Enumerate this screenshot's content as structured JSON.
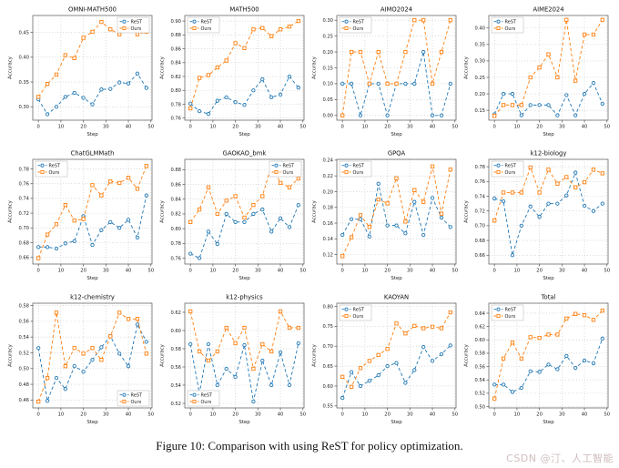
{
  "figure": {
    "caption": "Figure 10: Comparison with using ReST for policy optimization.",
    "watermark": "CSDN @汀、人工智能"
  },
  "colors": {
    "rest": "#1f77b4",
    "ours": "#ff7f0e",
    "grid": "#c9c9c9",
    "spine": "#555555",
    "tick_text": "#222222"
  },
  "axis_common": {
    "xlabel": "Step",
    "ylabel": "Accuracy",
    "xticks": [
      0,
      10,
      20,
      30,
      40,
      50
    ],
    "xlim": [
      -2.5,
      50.5
    ],
    "grid": "dotted",
    "x": [
      0,
      4,
      8,
      12,
      16,
      20,
      24,
      28,
      32,
      36,
      40,
      44,
      48
    ]
  },
  "chart_data": [
    {
      "type": "line",
      "title": "OMNI-MATH500",
      "legend_pos": "top-right",
      "ylim": [
        0.273,
        0.484
      ],
      "yticks": [
        0.3,
        0.35,
        0.4,
        0.45
      ],
      "series": [
        {
          "name": "ReST",
          "values": [
            0.315,
            0.285,
            0.3,
            0.32,
            0.328,
            0.318,
            0.305,
            0.335,
            0.336,
            0.349,
            0.347,
            0.367,
            0.338
          ]
        },
        {
          "name": "Ours",
          "values": [
            0.32,
            0.346,
            0.365,
            0.404,
            0.398,
            0.439,
            0.451,
            0.471,
            0.456,
            0.446,
            0.458,
            0.446,
            0.451
          ]
        }
      ]
    },
    {
      "type": "line",
      "title": "MATH500",
      "legend_pos": "top-left",
      "ylim": [
        0.757,
        0.908
      ],
      "yticks": [
        0.76,
        0.78,
        0.8,
        0.82,
        0.84,
        0.86,
        0.88,
        0.9
      ],
      "series": [
        {
          "name": "ReST",
          "values": [
            0.781,
            0.77,
            0.766,
            0.785,
            0.79,
            0.783,
            0.779,
            0.8,
            0.816,
            0.79,
            0.794,
            0.82,
            0.804
          ]
        },
        {
          "name": "Ours",
          "values": [
            0.774,
            0.818,
            0.822,
            0.833,
            0.843,
            0.868,
            0.861,
            0.888,
            0.89,
            0.878,
            0.888,
            0.892,
            0.9
          ]
        }
      ]
    },
    {
      "type": "line",
      "title": "AIMO2024",
      "legend_pos": "top-left",
      "ylim": [
        -0.015,
        0.315
      ],
      "yticks": [
        0.0,
        0.05,
        0.1,
        0.15,
        0.2,
        0.25,
        0.3
      ],
      "series": [
        {
          "name": "ReST",
          "values": [
            0.1,
            0.1,
            0.0,
            0.1,
            0.1,
            0.0,
            0.1,
            0.1,
            0.1,
            0.2,
            0.0,
            0.0,
            0.1
          ]
        },
        {
          "name": "Ours",
          "values": [
            0.0,
            0.2,
            0.2,
            0.1,
            0.2,
            0.1,
            0.1,
            0.2,
            0.3,
            0.3,
            0.1,
            0.2,
            0.3
          ]
        }
      ]
    },
    {
      "type": "line",
      "title": "AIME2024",
      "legend_pos": "top-left",
      "ylim": [
        0.12,
        0.438
      ],
      "yticks": [
        0.15,
        0.2,
        0.25,
        0.3,
        0.35,
        0.4
      ],
      "series": [
        {
          "name": "ReST",
          "values": [
            0.138,
            0.2,
            0.2,
            0.135,
            0.166,
            0.166,
            0.166,
            0.135,
            0.196,
            0.135,
            0.2,
            0.233,
            0.17
          ]
        },
        {
          "name": "Ours",
          "values": [
            0.133,
            0.166,
            0.166,
            0.166,
            0.25,
            0.28,
            0.32,
            0.25,
            0.425,
            0.24,
            0.38,
            0.38,
            0.425
          ]
        }
      ]
    },
    {
      "type": "line",
      "title": "ChatGLMMath",
      "legend_pos": "top-left",
      "ylim": [
        0.651,
        0.793
      ],
      "yticks": [
        0.66,
        0.68,
        0.7,
        0.72,
        0.74,
        0.76,
        0.78
      ],
      "series": [
        {
          "name": "ReST",
          "values": [
            0.674,
            0.674,
            0.672,
            0.679,
            0.682,
            0.716,
            0.677,
            0.697,
            0.708,
            0.7,
            0.711,
            0.687,
            0.744
          ]
        },
        {
          "name": "Ours",
          "values": [
            0.659,
            0.691,
            0.705,
            0.731,
            0.71,
            0.712,
            0.758,
            0.744,
            0.763,
            0.761,
            0.768,
            0.753,
            0.784
          ]
        }
      ]
    },
    {
      "type": "line",
      "title": "GAOKAO_bmk",
      "legend_pos": "top-right",
      "ylim": [
        0.752,
        0.894
      ],
      "yticks": [
        0.76,
        0.78,
        0.8,
        0.82,
        0.84,
        0.86,
        0.88
      ],
      "series": [
        {
          "name": "ReST",
          "values": [
            0.766,
            0.76,
            0.796,
            0.779,
            0.82,
            0.809,
            0.809,
            0.82,
            0.826,
            0.796,
            0.814,
            0.802,
            0.832
          ]
        },
        {
          "name": "Ours",
          "values": [
            0.809,
            0.826,
            0.856,
            0.82,
            0.838,
            0.844,
            0.815,
            0.832,
            0.844,
            0.886,
            0.862,
            0.856,
            0.868
          ]
        }
      ]
    },
    {
      "type": "line",
      "title": "GPQA",
      "legend_pos": "top-left",
      "ylim": [
        0.108,
        0.241
      ],
      "yticks": [
        0.12,
        0.14,
        0.16,
        0.18,
        0.2,
        0.22,
        0.24
      ],
      "series": [
        {
          "name": "ReST",
          "values": [
            0.145,
            0.165,
            0.165,
            0.143,
            0.21,
            0.157,
            0.157,
            0.147,
            0.187,
            0.145,
            0.192,
            0.167,
            0.155
          ]
        },
        {
          "name": "Ours",
          "values": [
            0.118,
            0.142,
            0.17,
            0.155,
            0.19,
            0.185,
            0.217,
            0.162,
            0.202,
            0.187,
            0.232,
            0.172,
            0.228
          ]
        }
      ]
    },
    {
      "type": "line",
      "title": "k12-biology",
      "legend_pos": "top-left",
      "ylim": [
        0.648,
        0.79
      ],
      "yticks": [
        0.66,
        0.68,
        0.7,
        0.72,
        0.74,
        0.76,
        0.78
      ],
      "series": [
        {
          "name": "ReST",
          "values": [
            0.737,
            0.733,
            0.66,
            0.7,
            0.726,
            0.712,
            0.73,
            0.73,
            0.741,
            0.772,
            0.727,
            0.72,
            0.73
          ]
        },
        {
          "name": "Ours",
          "values": [
            0.707,
            0.745,
            0.745,
            0.745,
            0.779,
            0.745,
            0.776,
            0.757,
            0.766,
            0.752,
            0.759,
            0.776,
            0.771
          ]
        }
      ]
    },
    {
      "type": "line",
      "title": "k12-chemistry",
      "legend_pos": "bottom-right",
      "ylim": [
        0.45,
        0.583
      ],
      "yticks": [
        0.46,
        0.48,
        0.5,
        0.52,
        0.54,
        0.56,
        0.58
      ],
      "series": [
        {
          "name": "ReST",
          "values": [
            0.526,
            0.459,
            0.488,
            0.474,
            0.503,
            0.496,
            0.511,
            0.527,
            0.541,
            0.519,
            0.503,
            0.556,
            0.534
          ]
        },
        {
          "name": "Ours",
          "values": [
            0.458,
            0.488,
            0.571,
            0.503,
            0.526,
            0.519,
            0.526,
            0.511,
            0.541,
            0.571,
            0.563,
            0.563,
            0.519
          ]
        }
      ]
    },
    {
      "type": "line",
      "title": "k12-physics",
      "legend_pos": "bottom-left",
      "ylim": [
        0.515,
        0.63
      ],
      "yticks": [
        0.52,
        0.54,
        0.56,
        0.58,
        0.6,
        0.62
      ],
      "series": [
        {
          "name": "ReST",
          "values": [
            0.585,
            0.531,
            0.585,
            0.54,
            0.558,
            0.549,
            0.584,
            0.522,
            0.567,
            0.54,
            0.576,
            0.54,
            0.586
          ]
        },
        {
          "name": "Ours",
          "values": [
            0.621,
            0.577,
            0.567,
            0.577,
            0.603,
            0.586,
            0.603,
            0.558,
            0.585,
            0.577,
            0.621,
            0.603,
            0.603
          ]
        }
      ]
    },
    {
      "type": "line",
      "title": "KAOYAN",
      "legend_pos": "top-left",
      "ylim": [
        0.545,
        0.808
      ],
      "yticks": [
        0.55,
        0.6,
        0.65,
        0.7,
        0.75,
        0.8
      ],
      "series": [
        {
          "name": "ReST",
          "values": [
            0.57,
            0.635,
            0.6,
            0.613,
            0.627,
            0.65,
            0.658,
            0.608,
            0.64,
            0.698,
            0.663,
            0.68,
            0.702
          ]
        },
        {
          "name": "Ours",
          "values": [
            0.623,
            0.598,
            0.645,
            0.663,
            0.678,
            0.693,
            0.757,
            0.732,
            0.751,
            0.745,
            0.749,
            0.745,
            0.785
          ]
        }
      ]
    },
    {
      "type": "line",
      "title": "Total",
      "legend_pos": "top-left",
      "ylim": [
        0.498,
        0.655
      ],
      "yticks": [
        0.5,
        0.52,
        0.54,
        0.56,
        0.58,
        0.6,
        0.62,
        0.64
      ],
      "series": [
        {
          "name": "ReST",
          "values": [
            0.533,
            0.533,
            0.522,
            0.528,
            0.553,
            0.552,
            0.563,
            0.556,
            0.576,
            0.558,
            0.569,
            0.565,
            0.602
          ]
        },
        {
          "name": "Ours",
          "values": [
            0.512,
            0.572,
            0.596,
            0.572,
            0.604,
            0.603,
            0.608,
            0.608,
            0.632,
            0.639,
            0.637,
            0.63,
            0.644
          ]
        }
      ]
    }
  ]
}
